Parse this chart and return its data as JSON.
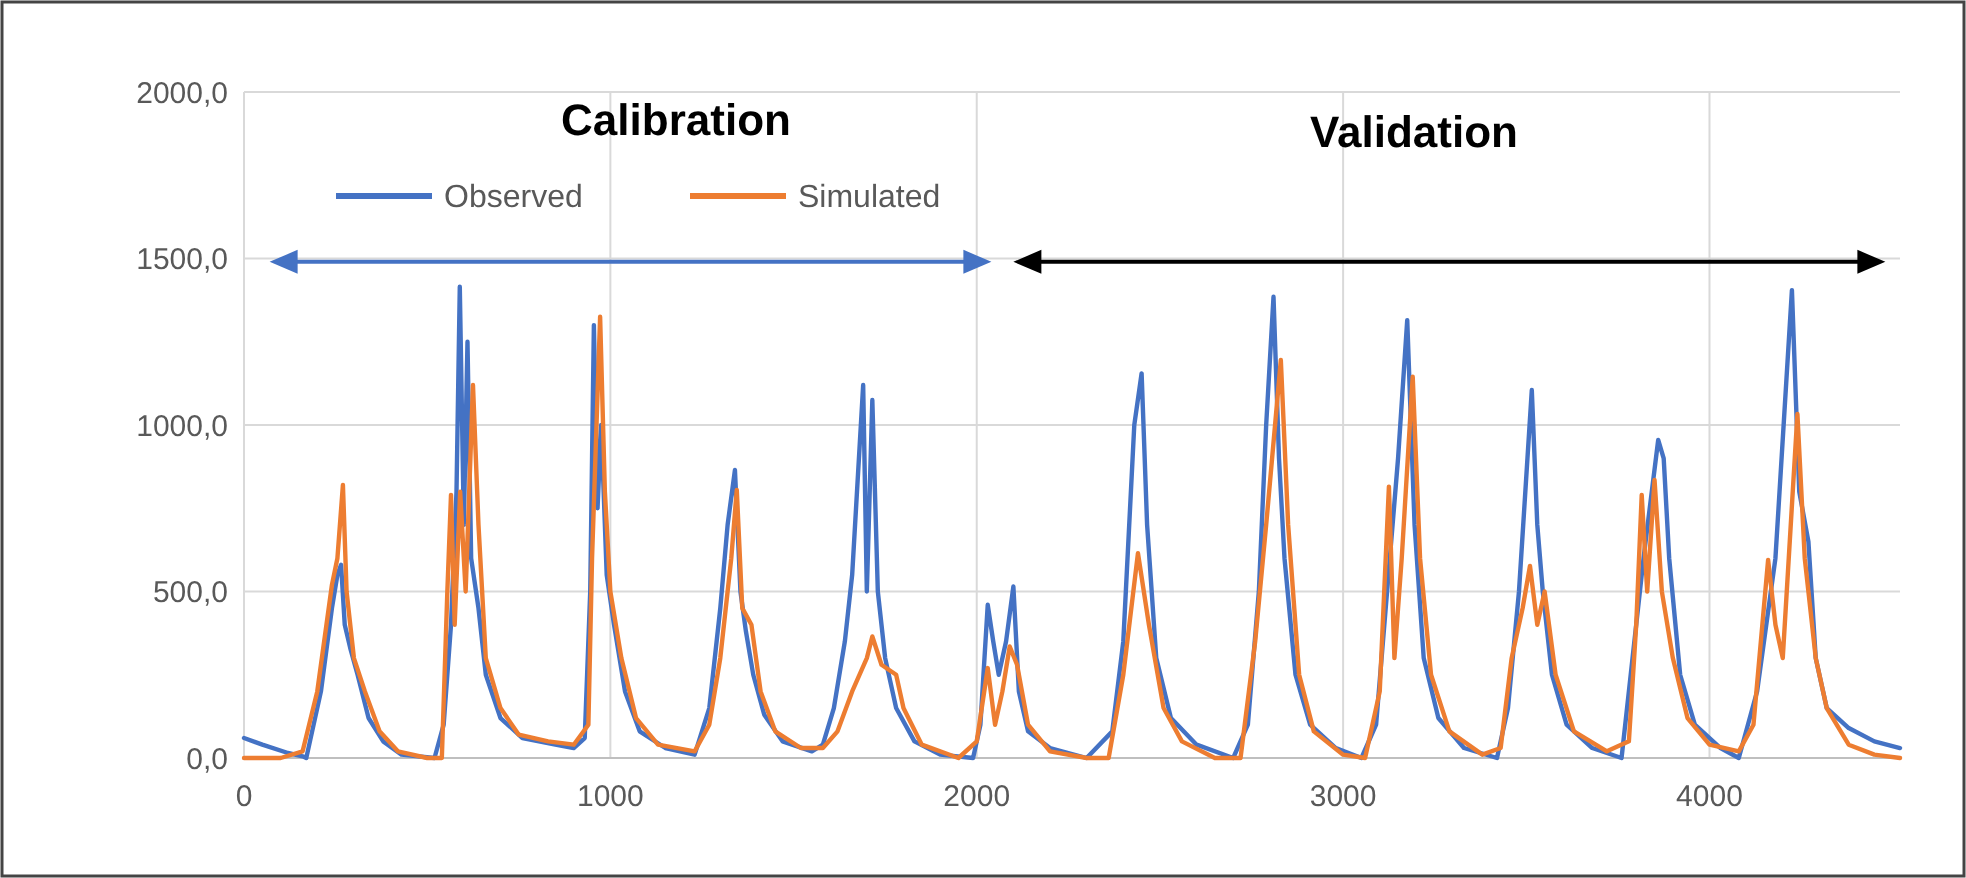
{
  "chart_data": {
    "type": "line",
    "xlim": [
      0,
      4520
    ],
    "xticks": [
      0,
      1000,
      2000,
      3000,
      4000
    ],
    "ylim": [
      0,
      2000
    ],
    "yticks": [
      {
        "value": 0,
        "label": "0,0"
      },
      {
        "value": 500,
        "label": "500,0"
      },
      {
        "value": 1000,
        "label": "1000,0"
      },
      {
        "value": 1500,
        "label": "1500,0"
      },
      {
        "value": 2000,
        "label": "2000,0"
      }
    ],
    "grid": true,
    "legend": "top left",
    "marker": "none",
    "line_style": "solid",
    "annotations": [
      "Calibration",
      "Validation"
    ],
    "series": [
      {
        "name": "Observed",
        "color": "#4472c4",
        "x": [
          0,
          50,
          120,
          160,
          170,
          180,
          210,
          240,
          255,
          265,
          275,
          290,
          310,
          340,
          380,
          430,
          520,
          545,
          565,
          580,
          589,
          600,
          610,
          620,
          640,
          660,
          700,
          760,
          850,
          900,
          930,
          945,
          955,
          965,
          975,
          990,
          1010,
          1040,
          1080,
          1150,
          1230,
          1270,
          1300,
          1320,
          1340,
          1355,
          1370,
          1390,
          1420,
          1470,
          1550,
          1580,
          1610,
          1640,
          1660,
          1690,
          1700,
          1715,
          1730,
          1750,
          1780,
          1830,
          1900,
          1990,
          2010,
          2030,
          2045,
          2060,
          2080,
          2100,
          2115,
          2140,
          2200,
          2300,
          2370,
          2400,
          2430,
          2450,
          2465,
          2490,
          2530,
          2600,
          2700,
          2740,
          2770,
          2790,
          2810,
          2825,
          2840,
          2870,
          2910,
          2980,
          3050,
          3090,
          3120,
          3150,
          3175,
          3195,
          3220,
          3260,
          3330,
          3420,
          3450,
          3480,
          3515,
          3530,
          3545,
          3570,
          3610,
          3680,
          3760,
          3790,
          3820,
          3860,
          3875,
          3890,
          3920,
          3960,
          4030,
          4080,
          4130,
          4180,
          4225,
          4245,
          4270,
          4290,
          4320,
          4380,
          4450,
          4520
        ],
        "values": [
          60,
          40,
          15,
          5,
          0,
          50,
          200,
          450,
          550,
          580,
          400,
          330,
          250,
          120,
          50,
          10,
          0,
          100,
          400,
          800,
          1415,
          700,
          1250,
          600,
          450,
          250,
          120,
          60,
          40,
          30,
          60,
          500,
          1300,
          750,
          1000,
          550,
          400,
          200,
          80,
          30,
          10,
          150,
          450,
          700,
          865,
          500,
          380,
          250,
          130,
          50,
          20,
          40,
          150,
          350,
          550,
          1120,
          500,
          1075,
          500,
          300,
          150,
          50,
          10,
          0,
          100,
          460,
          350,
          250,
          350,
          515,
          200,
          80,
          30,
          0,
          80,
          350,
          1000,
          1155,
          700,
          300,
          120,
          40,
          0,
          100,
          500,
          1000,
          1385,
          900,
          600,
          250,
          100,
          30,
          0,
          100,
          500,
          900,
          1315,
          700,
          300,
          120,
          30,
          0,
          150,
          500,
          1105,
          700,
          500,
          250,
          100,
          30,
          0,
          300,
          600,
          955,
          900,
          600,
          250,
          100,
          30,
          0,
          200,
          600,
          1405,
          800,
          650,
          300,
          150,
          90,
          50,
          30
        ]
      },
      {
        "name": "Simulated",
        "color": "#ed7d31",
        "x": [
          0,
          100,
          160,
          200,
          225,
          240,
          255,
          270,
          280,
          300,
          330,
          370,
          420,
          500,
          540,
          555,
          565,
          575,
          590,
          605,
          625,
          640,
          660,
          700,
          750,
          830,
          900,
          940,
          950,
          972,
          985,
          1000,
          1030,
          1070,
          1130,
          1230,
          1270,
          1300,
          1330,
          1345,
          1360,
          1385,
          1410,
          1450,
          1520,
          1580,
          1620,
          1660,
          1700,
          1715,
          1740,
          1780,
          1800,
          1850,
          1950,
          2000,
          2030,
          2050,
          2070,
          2090,
          2110,
          2140,
          2200,
          2300,
          2360,
          2400,
          2440,
          2470,
          2510,
          2560,
          2650,
          2720,
          2760,
          2790,
          2830,
          2850,
          2880,
          2920,
          3000,
          3060,
          3100,
          3125,
          3140,
          3160,
          3190,
          3210,
          3240,
          3290,
          3380,
          3430,
          3460,
          3490,
          3510,
          3530,
          3550,
          3580,
          3630,
          3720,
          3780,
          3800,
          3815,
          3830,
          3850,
          3870,
          3900,
          3940,
          4000,
          4080,
          4120,
          4160,
          4180,
          4200,
          4240,
          4260,
          4290,
          4320,
          4380,
          4450,
          4520
        ],
        "values": [
          0,
          0,
          20,
          200,
          400,
          520,
          600,
          820,
          500,
          300,
          200,
          80,
          20,
          0,
          0,
          500,
          790,
          400,
          800,
          500,
          1120,
          700,
          300,
          150,
          70,
          50,
          40,
          100,
          600,
          1325,
          800,
          500,
          300,
          120,
          40,
          20,
          100,
          300,
          600,
          805,
          450,
          400,
          200,
          80,
          30,
          30,
          80,
          200,
          300,
          365,
          280,
          250,
          150,
          40,
          0,
          50,
          270,
          100,
          200,
          335,
          280,
          100,
          20,
          0,
          0,
          250,
          615,
          400,
          150,
          50,
          0,
          0,
          350,
          700,
          1195,
          700,
          250,
          80,
          10,
          0,
          200,
          815,
          300,
          600,
          1145,
          600,
          250,
          80,
          10,
          30,
          300,
          450,
          577,
          400,
          500,
          250,
          80,
          20,
          50,
          400,
          790,
          500,
          835,
          500,
          300,
          120,
          40,
          20,
          100,
          595,
          400,
          300,
          1033,
          600,
          300,
          150,
          40,
          10,
          0
        ]
      }
    ]
  }
}
